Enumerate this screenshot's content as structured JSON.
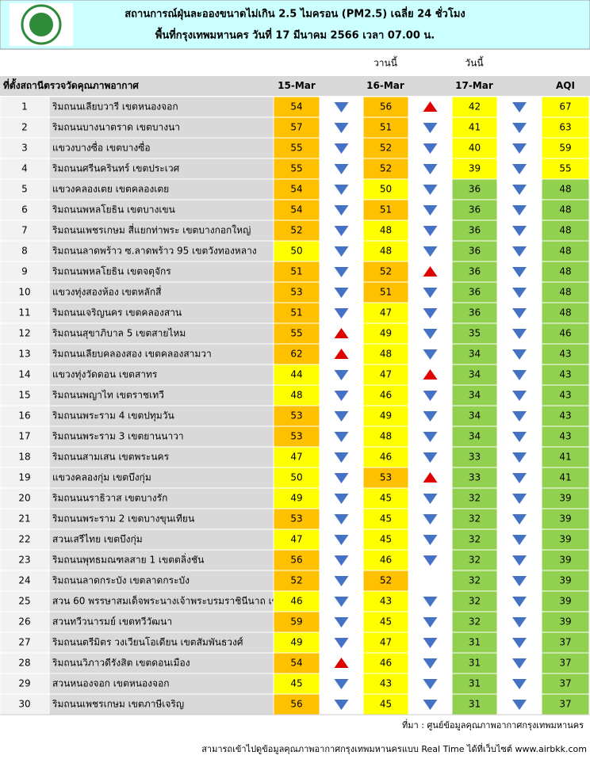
{
  "header": {
    "title": "สถานการณ์ฝุ่นละอองขนาดไม่เกิน 2.5 ไมครอน (PM2.5) เฉลี่ย 24 ชั่วโมง",
    "subtitle": "พื้นที่กรุงเทพมหานคร วันที่ 17 มีนาคม 2566 เวลา 07.00 น."
  },
  "table": {
    "day_labels": {
      "yesterday": "วานนี้",
      "today": "วันนี้"
    },
    "columns": [
      "ที่ตั้งสถานีตรวจวัดคุณภาพอากาศ",
      "15-Mar",
      "16-Mar",
      "17-Mar",
      "AQI"
    ],
    "rows": [
      [
        1,
        "ริมถนนเลียบวารี เขตหนองจอก",
        54,
        56,
        42,
        67
      ],
      [
        2,
        "ริมถนนบางนาตราด เขตบางนา",
        57,
        51,
        41,
        63
      ],
      [
        3,
        "แขวงบางซื่อ เขตบางซื่อ",
        55,
        52,
        40,
        59
      ],
      [
        4,
        "ริมถนนศรีนครินทร์ เขตประเวศ",
        55,
        52,
        39,
        55
      ],
      [
        5,
        "แขวงคลองเตย เขตคลองเตย",
        54,
        50,
        36,
        48
      ],
      [
        6,
        "ริมถนนพหลโยธิน เขตบางเขน",
        54,
        51,
        36,
        48
      ],
      [
        7,
        "ริมถนนเพชรเกษม สี่แยกท่าพระ เขตบางกอกใหญ่",
        52,
        48,
        36,
        48
      ],
      [
        8,
        "ริมถนนลาดพร้าว ซ.ลาดพร้าว 95 เขตวังทองหลาง",
        50,
        48,
        36,
        48
      ],
      [
        9,
        "ริมถนนพหลโยธิน เขตจตุจักร",
        51,
        52,
        36,
        48
      ],
      [
        10,
        "แขวงทุ่งสองห้อง เขตหลักสี่",
        53,
        51,
        36,
        48
      ],
      [
        11,
        "ริมถนนเจริญนคร เขตคลองสาน",
        51,
        47,
        36,
        48
      ],
      [
        12,
        "ริมถนนสุขาภิบาล 5 เขตสายไหม",
        55,
        49,
        35,
        46
      ],
      [
        13,
        "ริมถนนเลียบคลองสอง เขตคลองสามวา",
        62,
        48,
        34,
        43
      ],
      [
        14,
        "แขวงทุ่งวัดดอน เขตสาทร",
        44,
        47,
        34,
        43
      ],
      [
        15,
        "ริมถนนพญาไท เขตราชเทวี",
        48,
        46,
        34,
        43
      ],
      [
        16,
        "ริมถนนพระราม 4 เขตปทุมวัน",
        53,
        49,
        34,
        43
      ],
      [
        17,
        "ริมถนนพระราม 3 เขตยานนาวา",
        53,
        48,
        34,
        43
      ],
      [
        18,
        "ริมถนนสามเสน เขตพระนคร",
        47,
        46,
        33,
        41
      ],
      [
        19,
        "แขวงคลองกุ่ม เขตบึงกุ่ม",
        50,
        53,
        33,
        41
      ],
      [
        20,
        "ริมถนนนราธิวาส เขตบางรัก",
        49,
        45,
        32,
        39
      ],
      [
        21,
        "ริมถนนพระราม 2 เขตบางขุนเทียน",
        53,
        45,
        32,
        39
      ],
      [
        22,
        "สวนเสรีไทย  เขตบึงกุ่ม",
        47,
        45,
        32,
        39
      ],
      [
        23,
        "ริมถนนพุทธมณฑลสาย 1 เขตตลิ่งชัน",
        56,
        46,
        32,
        39
      ],
      [
        24,
        "ริมถนนลาดกระบัง เขตลาดกระบัง",
        52,
        52,
        32,
        39
      ],
      [
        25,
        "สวน 60 พรรษาสมเด็จพระนางเจ้าพระบรมราชินีนาถ เขตบางกอกน้อย",
        46,
        43,
        32,
        39
      ],
      [
        26,
        "สวนทวีวนารมย์ เขตทวีวัฒนา",
        59,
        45,
        32,
        39
      ],
      [
        27,
        "ริมถนนตรีมิตร วงเวียนโอเดียน เขตสัมพันธวงศ์",
        49,
        47,
        31,
        37
      ],
      [
        28,
        "ริมถนนวิภาวดีรังสิต เขตดอนเมือง",
        54,
        46,
        31,
        37
      ],
      [
        29,
        "สวนหนองจอก เขตหนองจอก",
        45,
        43,
        31,
        37
      ],
      [
        30,
        "ริมถนนเพชรเกษม เขตภาษีเจริญ",
        56,
        45,
        31,
        37
      ]
    ]
  },
  "footer": {
    "source": "ที่มา : ศูนย์ข้อมูลคุณภาพอากาศกรุงเทพมหานคร",
    "note": "สามารถเข้าไปดูข้อมูลคุณภาพอากาศกรุงเทพมหานครแบบ Real Time ได้ที่เว็บไซต์ www.airbkk.com"
  }
}
